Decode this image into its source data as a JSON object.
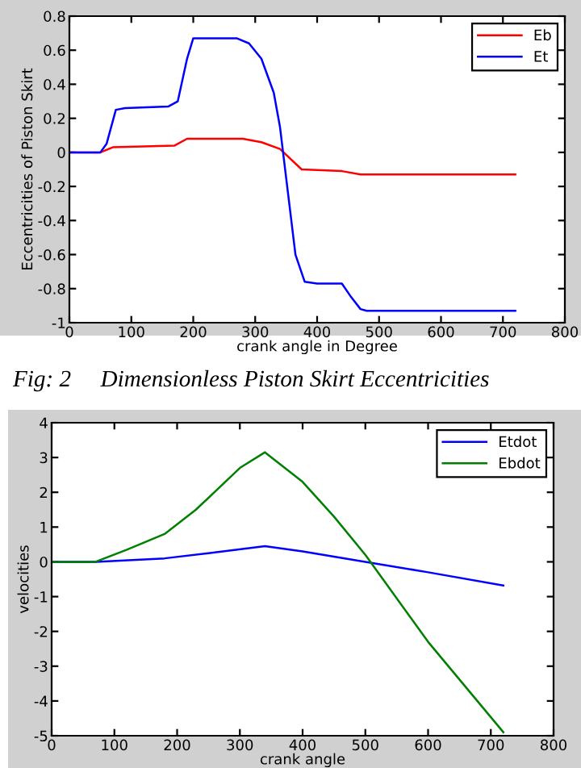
{
  "chart_data": [
    {
      "type": "line",
      "xlabel": "crank angle in Degree",
      "ylabel": "Eccentricities of Piston Skirt",
      "xlim": [
        0,
        800
      ],
      "xticks": [
        0,
        100,
        200,
        300,
        400,
        500,
        600,
        700,
        800
      ],
      "ylim": [
        -1,
        0.8
      ],
      "yticks": [
        -1,
        -0.8,
        -0.6,
        -0.4,
        -0.2,
        0,
        0.2,
        0.4,
        0.6,
        0.8
      ],
      "legend": "top right",
      "grid": false,
      "annotations": [
        "Fig: 2     Dimensionless Piston Skirt Eccentricities"
      ],
      "series": [
        {
          "name": "Eb",
          "color": "#ff0000",
          "x": [
            0,
            50,
            70,
            170,
            190,
            280,
            310,
            340,
            375,
            440,
            470,
            720
          ],
          "values": [
            0,
            0,
            0.03,
            0.04,
            0.08,
            0.08,
            0.06,
            0.02,
            -0.1,
            -0.11,
            -0.13,
            -0.13
          ]
        },
        {
          "name": "Et",
          "color": "#0000ff",
          "x": [
            0,
            50,
            60,
            75,
            90,
            160,
            175,
            190,
            200,
            270,
            290,
            310,
            330,
            340,
            350,
            365,
            380,
            400,
            440,
            455,
            470,
            480,
            720
          ],
          "values": [
            0,
            0,
            0.05,
            0.25,
            0.26,
            0.27,
            0.3,
            0.55,
            0.67,
            0.67,
            0.64,
            0.55,
            0.35,
            0.15,
            -0.15,
            -0.6,
            -0.76,
            -0.77,
            -0.77,
            -0.85,
            -0.92,
            -0.93,
            -0.93
          ]
        }
      ]
    },
    {
      "type": "line",
      "xlabel": "crank angle",
      "ylabel": "velocities",
      "xlim": [
        0,
        800
      ],
      "xticks": [
        0,
        100,
        200,
        300,
        400,
        500,
        600,
        700,
        800
      ],
      "ylim": [
        -5,
        4
      ],
      "yticks": [
        -5,
        -4,
        -3,
        -2,
        -1,
        0,
        1,
        2,
        3,
        4
      ],
      "legend": "top right",
      "grid": false,
      "series": [
        {
          "name": "Etdot",
          "color": "#0000ff",
          "x": [
            0,
            70,
            180,
            250,
            340,
            400,
            500,
            600,
            720
          ],
          "values": [
            0,
            0,
            0.1,
            0.25,
            0.45,
            0.3,
            0,
            -0.3,
            -0.68
          ]
        },
        {
          "name": "Ebdot",
          "color": "#008000",
          "x": [
            0,
            70,
            120,
            180,
            230,
            300,
            340,
            400,
            450,
            500,
            600,
            720
          ],
          "values": [
            0,
            0,
            0.35,
            0.8,
            1.5,
            2.7,
            3.15,
            2.3,
            1.3,
            0.2,
            -2.3,
            -4.9
          ]
        }
      ]
    }
  ]
}
